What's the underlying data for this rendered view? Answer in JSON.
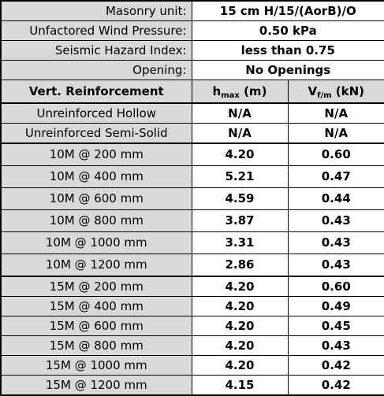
{
  "info": [
    {
      "label": "Masonry unit:",
      "value": "15 cm H/15/(AorB)/O"
    },
    {
      "label": "Unfactored Wind Pressure:",
      "value": "0.50 kPa"
    },
    {
      "label": "Seismic Hazard Index:",
      "value": "less than 0.75"
    },
    {
      "label": "Opening:",
      "value": "No Openings"
    }
  ],
  "header": {
    "col1": "Vert. Reinforcement",
    "col2_main": "h",
    "col2_sub": "max",
    "col2_unit": " (m)",
    "col3_main": "V",
    "col3_sub": "f/m",
    "col3_unit": " (kN)"
  },
  "unreinforced": [
    {
      "label": "Unreinforced Hollow",
      "h": "N/A",
      "v": "N/A"
    },
    {
      "label": "Unreinforced Semi-Solid",
      "h": "N/A",
      "v": "N/A"
    }
  ],
  "group_10m": [
    {
      "label": "10M @ 200 mm",
      "h": "4.20",
      "v": "0.60"
    },
    {
      "label": "10M @ 400 mm",
      "h": "5.21",
      "v": "0.47"
    },
    {
      "label": "10M @ 600 mm",
      "h": "4.59",
      "v": "0.44"
    },
    {
      "label": "10M @ 800 mm",
      "h": "3.87",
      "v": "0.43"
    },
    {
      "label": "10M @ 1000 mm",
      "h": "3.31",
      "v": "0.43"
    },
    {
      "label": "10M @ 1200 mm",
      "h": "2.86",
      "v": "0.43"
    }
  ],
  "group_15m": [
    {
      "label": "15M @ 200 mm",
      "h": "4.20",
      "v": "0.60"
    },
    {
      "label": "15M @ 400 mm",
      "h": "4.20",
      "v": "0.49"
    },
    {
      "label": "15M @ 600 mm",
      "h": "4.20",
      "v": "0.45"
    },
    {
      "label": "15M @ 800 mm",
      "h": "4.20",
      "v": "0.43"
    },
    {
      "label": "15M @ 1000 mm",
      "h": "4.20",
      "v": "0.42"
    },
    {
      "label": "15M @ 1200 mm",
      "h": "4.15",
      "v": "0.42"
    }
  ]
}
